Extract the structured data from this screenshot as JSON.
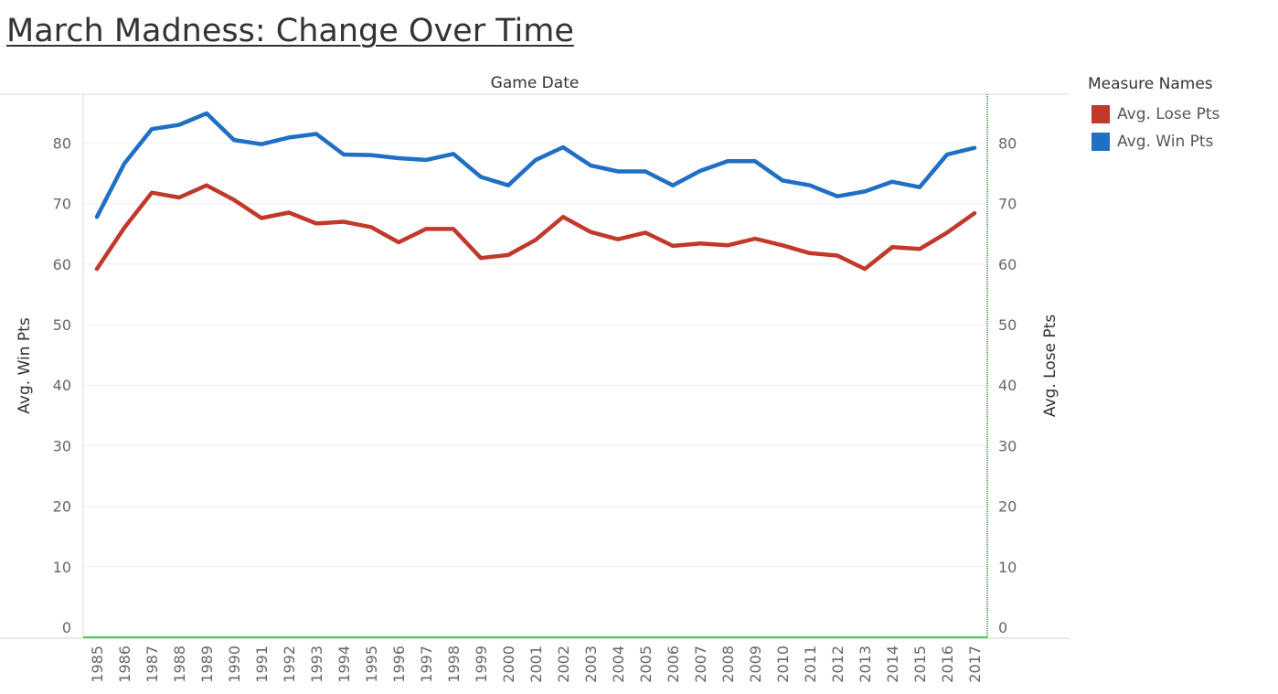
{
  "title": "March Madness: Change Over Time",
  "legend": {
    "title": "Measure Names",
    "items": [
      {
        "label": "Avg. Lose Pts",
        "color": "#c0392b"
      },
      {
        "label": "Avg. Win Pts",
        "color": "#1f6fc5"
      }
    ]
  },
  "chart_data": {
    "type": "line",
    "title": "March Madness: Change Over Time",
    "xlabel": "Game Date",
    "ylabel_left": "Avg. Win Pts",
    "ylabel_right": "Avg. Lose Pts",
    "ylim": [
      0,
      90
    ],
    "yticks": [
      0,
      10,
      20,
      30,
      40,
      50,
      60,
      70,
      80
    ],
    "grid": true,
    "legend_position": "right",
    "x": [
      "1985",
      "1986",
      "1987",
      "1988",
      "1989",
      "1990",
      "1991",
      "1992",
      "1993",
      "1994",
      "1995",
      "1996",
      "1997",
      "1998",
      "1999",
      "2000",
      "2001",
      "2002",
      "2003",
      "2004",
      "2005",
      "2006",
      "2007",
      "2008",
      "2009",
      "2010",
      "2011",
      "2012",
      "2013",
      "2014",
      "2015",
      "2016",
      "2017"
    ],
    "series": [
      {
        "name": "Avg. Win Pts",
        "color": "#1f6fc5",
        "axis": "left",
        "values": [
          67.8,
          76.6,
          82.3,
          83.0,
          84.9,
          80.5,
          79.8,
          80.9,
          81.5,
          78.1,
          78.0,
          77.5,
          77.2,
          78.2,
          74.4,
          73.0,
          77.2,
          79.3,
          76.3,
          75.3,
          75.3,
          73.0,
          75.4,
          77.0,
          77.0,
          73.8,
          73.0,
          71.2,
          72.0,
          73.6,
          72.7,
          78.1,
          79.2
        ]
      },
      {
        "name": "Avg. Lose Pts",
        "color": "#c0392b",
        "axis": "right",
        "values": [
          59.2,
          66.0,
          71.8,
          71.0,
          73.0,
          70.6,
          67.6,
          68.5,
          66.7,
          67.0,
          66.1,
          63.6,
          65.8,
          65.8,
          61.0,
          61.5,
          64.0,
          67.8,
          65.3,
          64.1,
          65.2,
          63.0,
          63.4,
          63.1,
          64.2,
          63.1,
          61.8,
          61.4,
          59.2,
          62.8,
          62.5,
          65.2,
          68.4
        ]
      }
    ]
  }
}
